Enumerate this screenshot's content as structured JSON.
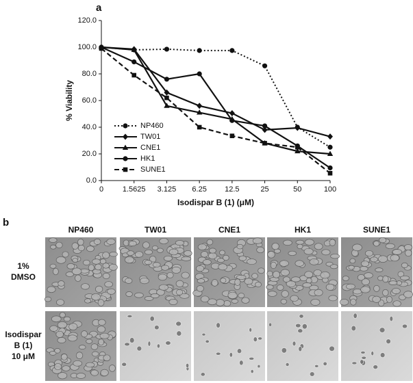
{
  "chart_data": {
    "type": "line",
    "panel_label": "a",
    "xlabel": "Isodispar B (1) (μM)",
    "ylabel": "% Viability",
    "categories": [
      "0",
      "1.5625",
      "3.125",
      "6.25",
      "12.5",
      "25",
      "50",
      "100"
    ],
    "ylim": [
      0,
      120
    ],
    "yticks": [
      {
        "value": 0,
        "label": "0.0"
      },
      {
        "value": 20,
        "label": "20.0"
      },
      {
        "value": 40,
        "label": "40.0"
      },
      {
        "value": 60,
        "label": "60.0"
      },
      {
        "value": 80,
        "label": "80.0"
      },
      {
        "value": 100,
        "label": "100.0"
      },
      {
        "value": 120,
        "label": "120.0"
      }
    ],
    "grid": false,
    "series": [
      {
        "name": "NP460",
        "color": "#111111",
        "line_style": "dotted",
        "marker": "circle",
        "values": [
          100,
          98,
          98.5,
          97.5,
          97.5,
          86,
          40,
          25
        ]
      },
      {
        "name": "TW01",
        "color": "#111111",
        "line_style": "solid",
        "marker": "diamond",
        "values": [
          100,
          98.5,
          66,
          56,
          50.5,
          38,
          39.5,
          33
        ]
      },
      {
        "name": "CNE1",
        "color": "#111111",
        "line_style": "solid",
        "marker": "triangle",
        "values": [
          100,
          98,
          56,
          51,
          46,
          28,
          22,
          20
        ]
      },
      {
        "name": "HK1",
        "color": "#111111",
        "line_style": "solid",
        "marker": "circle",
        "values": [
          100,
          89,
          76,
          80,
          45,
          41,
          26,
          9.5
        ]
      },
      {
        "name": "SUNE1",
        "color": "#111111",
        "line_style": "dashed",
        "marker": "square",
        "values": [
          99,
          79,
          62,
          40,
          33.5,
          28,
          25,
          5.5
        ]
      }
    ]
  },
  "image_grid": {
    "panel_label": "b",
    "columns": [
      "NP460",
      "TW01",
      "CNE1",
      "HK1",
      "SUNE1"
    ],
    "rows": [
      {
        "label_lines": [
          "1%",
          "DMSO"
        ]
      },
      {
        "label_lines": [
          "Isodispar",
          "B (1)",
          "10 μM"
        ]
      }
    ]
  }
}
